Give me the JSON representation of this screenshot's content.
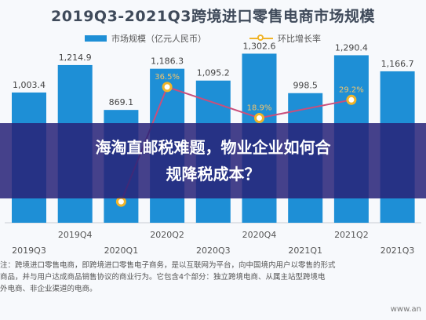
{
  "banner": {
    "line1": "海淘直邮税难题，物业企业如何合",
    "line2": "规降税成本？"
  },
  "chart_data": {
    "type": "bar",
    "title": "2019Q3-2021Q3跨境进口零售电商市场规模",
    "categories": [
      "2019Q3",
      "2019Q4",
      "2020Q1",
      "2020Q2",
      "2020Q3",
      "2020Q4",
      "2021Q1",
      "2021Q2",
      "2021Q3"
    ],
    "series": [
      {
        "name": "市场规模（亿元人民币）",
        "type": "bar",
        "values": [
          1003.4,
          1214.9,
          869.1,
          1186.3,
          1095.2,
          1302.6,
          998.5,
          1290.4,
          1166.7
        ],
        "labels": [
          "1,003.4",
          "1,214.9",
          "869.1",
          "1,186.3",
          "1,095.2",
          "1,302.6",
          "998.5",
          "1,290.4",
          "1,166.7"
        ]
      },
      {
        "name": "环比增长率",
        "type": "line",
        "values": [
          null,
          null,
          -28.5,
          36.5,
          null,
          18.9,
          null,
          29.2,
          null
        ],
        "labels": [
          "",
          "",
          "",
          "36.5%",
          "",
          "18.9%",
          "",
          "29.2%",
          ""
        ]
      }
    ],
    "colors": {
      "bar": "#1e8fd6",
      "line": "#f0b429",
      "line_path": "#c94f7c"
    },
    "ylim": [
      0,
      1400
    ],
    "grid": false,
    "legend": "top"
  },
  "note": {
    "lines": [
      "注：跨境进口零售电商，即跨境进口零售电子商务，是以互联网为平台，向中国境内用户以零售的形式",
      "商品，并与用户达成商品销售协议的商业行为。它包含4个部分：独立跨境电商、从属主站型跨境电",
      "外电商、非企业渠道的电商。"
    ]
  },
  "source": "www.an"
}
